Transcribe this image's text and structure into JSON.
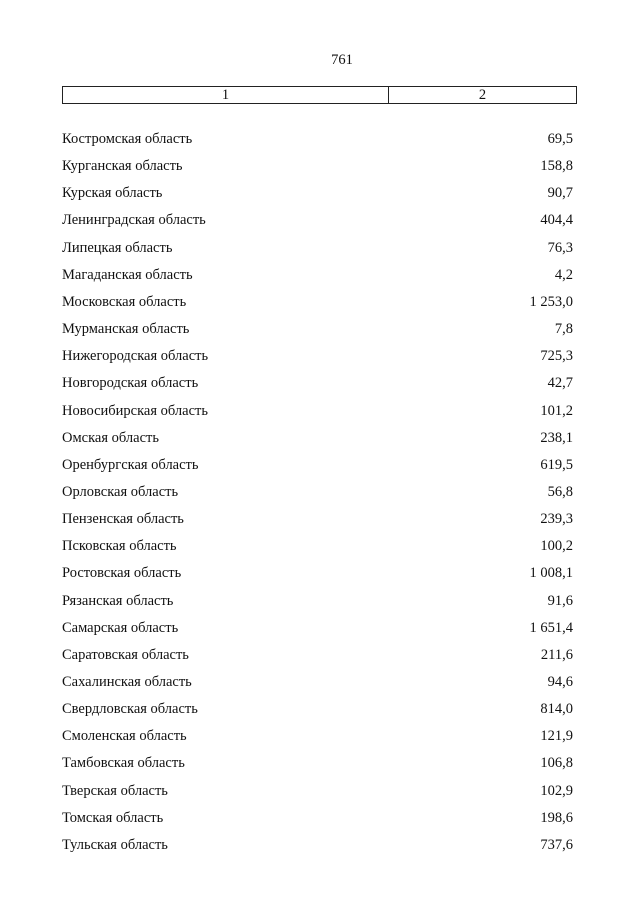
{
  "page_number": "761",
  "table": {
    "header": [
      "1",
      "2"
    ],
    "rows": [
      [
        "Костромская область",
        "69,5"
      ],
      [
        "Курганская область",
        "158,8"
      ],
      [
        "Курская область",
        "90,7"
      ],
      [
        "Ленинградская область",
        "404,4"
      ],
      [
        "Липецкая область",
        "76,3"
      ],
      [
        "Магаданская область",
        "4,2"
      ],
      [
        "Московская область",
        "1 253,0"
      ],
      [
        "Мурманская область",
        "7,8"
      ],
      [
        "Нижегородская область",
        "725,3"
      ],
      [
        "Новгородская область",
        "42,7"
      ],
      [
        "Новосибирская область",
        "101,2"
      ],
      [
        "Омская область",
        "238,1"
      ],
      [
        "Оренбургская область",
        "619,5"
      ],
      [
        "Орловская область",
        "56,8"
      ],
      [
        "Пензенская область",
        "239,3"
      ],
      [
        "Псковская область",
        "100,2"
      ],
      [
        "Ростовская область",
        "1 008,1"
      ],
      [
        "Рязанская область",
        "91,6"
      ],
      [
        "Самарская область",
        "1 651,4"
      ],
      [
        "Саратовская область",
        "211,6"
      ],
      [
        "Сахалинская область",
        "94,6"
      ],
      [
        "Свердловская область",
        "814,0"
      ],
      [
        "Смоленская область",
        "121,9"
      ],
      [
        "Тамбовская область",
        "106,8"
      ],
      [
        "Тверская область",
        "102,9"
      ],
      [
        "Томская область",
        "198,6"
      ],
      [
        "Тульская область",
        "737,6"
      ]
    ]
  }
}
